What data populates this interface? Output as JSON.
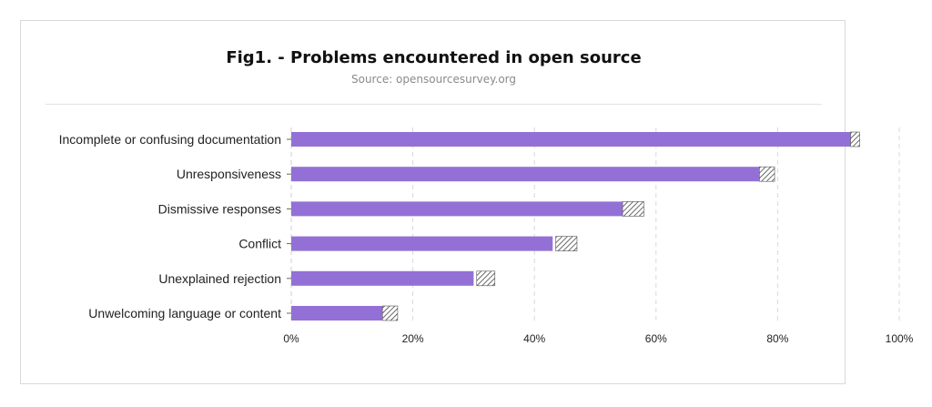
{
  "chart_data": {
    "type": "bar",
    "orientation": "horizontal",
    "title": "Fig1. - Problems encountered in open source",
    "subtitle": "Source: opensourcesurvey.org",
    "categories": [
      "Incomplete or confusing documentation",
      "Unresponsiveness",
      "Dismissive responses",
      "Conflict",
      "Unexplained rejection",
      "Unwelcoming language or content"
    ],
    "values": [
      92,
      77,
      55,
      43,
      30,
      15
    ],
    "error_low": [
      92,
      77,
      54.5,
      43.5,
      30.5,
      15
    ],
    "error_high": [
      93.5,
      79.5,
      58,
      47,
      33.5,
      17.5
    ],
    "xlim": [
      0,
      100
    ],
    "xticks": [
      "0%",
      "20%",
      "40%",
      "60%",
      "80%",
      "100%"
    ],
    "grid": true,
    "colors": {
      "bar": "#9370d6",
      "hatch": "#444444"
    }
  }
}
